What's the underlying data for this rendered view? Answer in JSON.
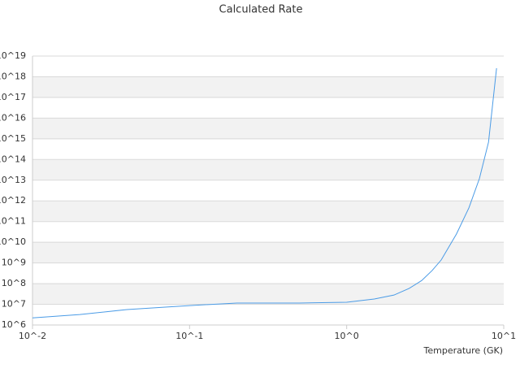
{
  "chart_data": {
    "type": "line",
    "title": "Calculated Rate",
    "x_label": "Temperature (GK)",
    "x_log": true,
    "y_log": true,
    "grid": true,
    "band_color": "#f2f2f2",
    "xlim": [
      0.01,
      10
    ],
    "xticks": [
      {
        "value": 0.01,
        "label": "10^-2"
      },
      {
        "value": 0.1,
        "label": "10^-1"
      },
      {
        "value": 1,
        "label": "10^0"
      },
      {
        "value": 10,
        "label": "10^1"
      }
    ],
    "ylim": [
      1000000.0,
      1e+19
    ],
    "yticks": [
      {
        "value": 1000000.0,
        "label": "10^6"
      },
      {
        "value": 10000000.0,
        "label": "10^7"
      },
      {
        "value": 100000000.0,
        "label": "10^8"
      },
      {
        "value": 1000000000.0,
        "label": "10^9"
      },
      {
        "value": 10000000000.0,
        "label": "10^10"
      },
      {
        "value": 100000000000.0,
        "label": "10^11"
      },
      {
        "value": 1000000000000.0,
        "label": "10^12"
      },
      {
        "value": 10000000000000.0,
        "label": "10^13"
      },
      {
        "value": 100000000000000.0,
        "label": "10^14"
      },
      {
        "value": 1000000000000000.0,
        "label": "10^15"
      },
      {
        "value": 1e+16,
        "label": "10^16"
      },
      {
        "value": 1e+17,
        "label": "10^17"
      },
      {
        "value": 1e+18,
        "label": "10^18"
      },
      {
        "value": 1e+19,
        "label": "10^19"
      }
    ],
    "x": [
      0.01,
      0.02,
      0.04,
      0.07,
      0.1,
      0.2,
      0.5,
      1,
      1.5,
      2,
      2.5,
      3,
      3.5,
      4,
      5,
      6,
      7,
      8,
      9
    ],
    "series": [
      {
        "color": "#4a9be6",
        "values": [
          2200000.0,
          3200000.0,
          5600000.0,
          7300000.0,
          8700000.0,
          11500000.0,
          11500000.0,
          12600000.0,
          18000000.0,
          28000000.0,
          59000000.0,
          140000000.0,
          430000000.0,
          1400000000.0,
          25000000000.0,
          460000000000.0,
          12000000000000.0,
          690000000000000.0,
          2.6e+18
        ]
      }
    ]
  }
}
